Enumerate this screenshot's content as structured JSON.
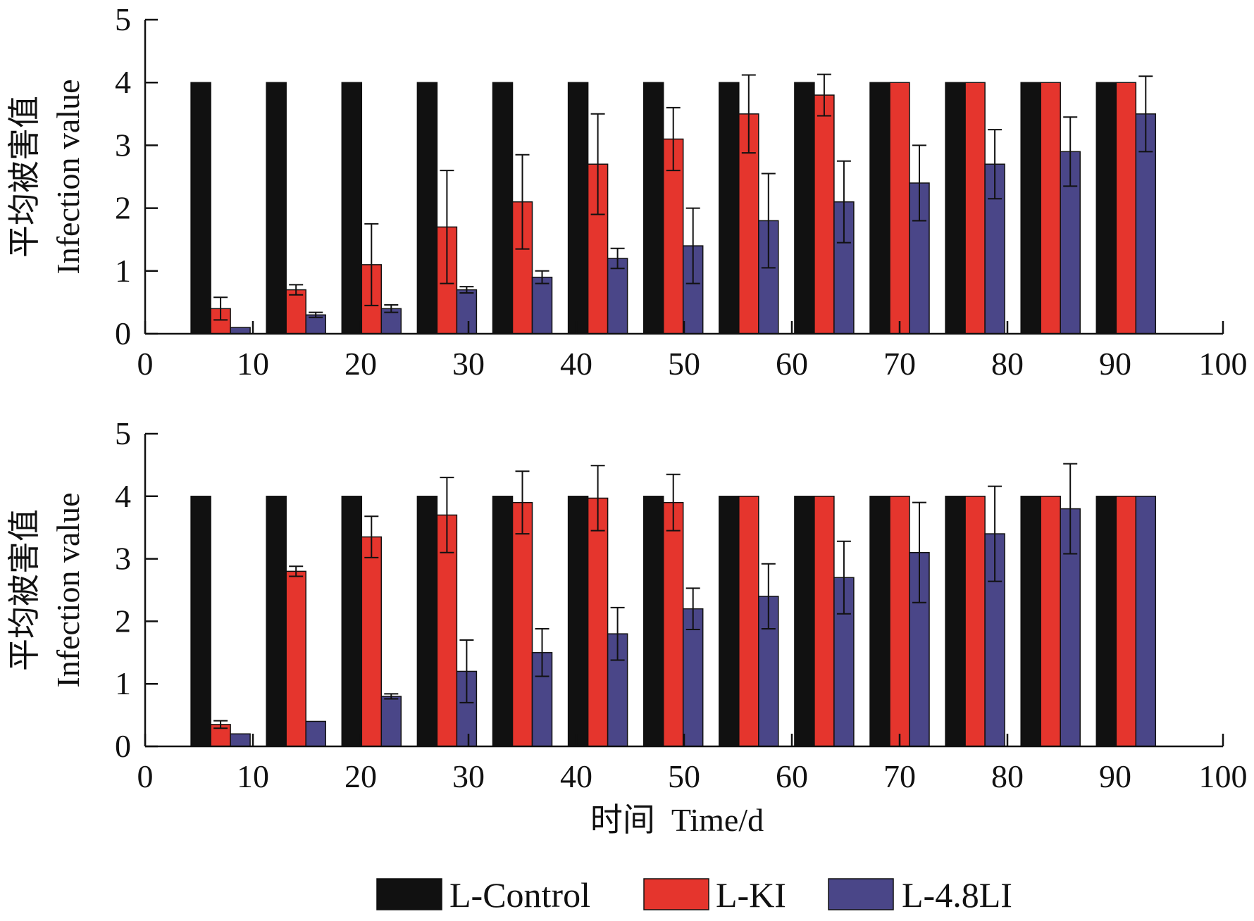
{
  "chart_data": [
    {
      "type": "bar",
      "panel": "top",
      "x_tick_labels": [
        "0",
        "10",
        "20",
        "30",
        "40",
        "50",
        "60",
        "70",
        "80",
        "90",
        "100"
      ],
      "y_tick_labels": [
        "0",
        "1",
        "2",
        "3",
        "4",
        "5"
      ],
      "ylabel_cn": "平均被害值",
      "ylabel_en": "Infection value",
      "xlim": [
        0,
        100
      ],
      "ylim": [
        0,
        5
      ],
      "x": [
        7,
        14,
        21,
        28,
        35,
        42,
        49,
        56,
        63,
        70,
        77,
        84,
        91
      ],
      "series": [
        {
          "name": "L-Control",
          "values": [
            4,
            4,
            4,
            4,
            4,
            4,
            4,
            4,
            4,
            4,
            4,
            4,
            4
          ],
          "errors": [
            0,
            0,
            0,
            0,
            0,
            0,
            0,
            0,
            0,
            0,
            0,
            0,
            0
          ]
        },
        {
          "name": "L-KI",
          "values": [
            0.4,
            0.7,
            1.1,
            1.7,
            2.1,
            2.7,
            3.1,
            3.5,
            3.8,
            4,
            4,
            4,
            4
          ],
          "errors": [
            0.18,
            0.08,
            0.65,
            0.9,
            0.75,
            0.8,
            0.5,
            0.62,
            0.33,
            0,
            0,
            0,
            0
          ]
        },
        {
          "name": "L-4.8LI",
          "values": [
            0.1,
            0.3,
            0.4,
            0.7,
            0.9,
            1.2,
            1.4,
            1.8,
            2.1,
            2.4,
            2.7,
            2.9,
            3.5
          ],
          "errors": [
            0,
            0.04,
            0.06,
            0.05,
            0.1,
            0.16,
            0.6,
            0.75,
            0.65,
            0.6,
            0.55,
            0.55,
            0.6
          ]
        }
      ]
    },
    {
      "type": "bar",
      "panel": "bottom",
      "x_tick_labels": [
        "0",
        "10",
        "20",
        "30",
        "40",
        "50",
        "60",
        "70",
        "80",
        "90",
        "100"
      ],
      "y_tick_labels": [
        "0",
        "1",
        "2",
        "3",
        "4",
        "5"
      ],
      "ylabel_cn": "平均被害值",
      "ylabel_en": "Infection value",
      "xlabel": "时间  Time/d",
      "xlim": [
        0,
        100
      ],
      "ylim": [
        0,
        5
      ],
      "x": [
        7,
        14,
        21,
        28,
        35,
        42,
        49,
        56,
        63,
        70,
        77,
        84,
        91
      ],
      "series": [
        {
          "name": "L-Control",
          "values": [
            4,
            4,
            4,
            4,
            4,
            4,
            4,
            4,
            4,
            4,
            4,
            4,
            4
          ],
          "errors": [
            0,
            0,
            0,
            0,
            0,
            0,
            0,
            0,
            0,
            0,
            0,
            0,
            0
          ]
        },
        {
          "name": "L-KI",
          "values": [
            0.35,
            2.8,
            3.35,
            3.7,
            3.9,
            3.97,
            3.9,
            4,
            4,
            4,
            4,
            4,
            4
          ],
          "errors": [
            0.06,
            0.08,
            0.33,
            0.6,
            0.5,
            0.52,
            0.45,
            0,
            0,
            0,
            0,
            0,
            0
          ]
        },
        {
          "name": "L-4.8LI",
          "values": [
            0.2,
            0.4,
            0.8,
            1.2,
            1.5,
            1.8,
            2.2,
            2.4,
            2.7,
            3.1,
            3.4,
            3.8,
            4
          ],
          "errors": [
            0,
            0,
            0.04,
            0.5,
            0.38,
            0.42,
            0.33,
            0.52,
            0.58,
            0.8,
            0.76,
            0.72,
            0
          ]
        }
      ]
    }
  ],
  "legend": {
    "placement": "bottom-center",
    "items": [
      {
        "name": "L-Control",
        "color": "#111111"
      },
      {
        "name": "L-KI",
        "color": "#e5352d"
      },
      {
        "name": "L-4.8LI",
        "color": "#4a4688"
      }
    ]
  }
}
